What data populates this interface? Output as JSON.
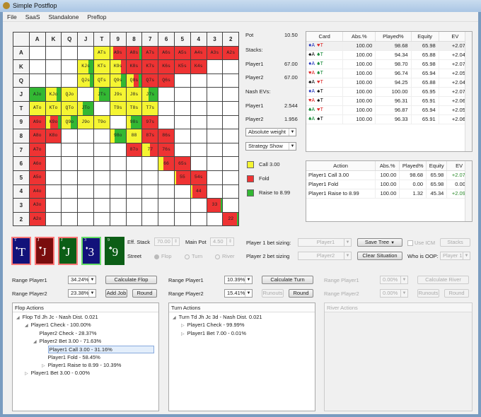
{
  "window": {
    "title": "Simple Postflop"
  },
  "menu": [
    "File",
    "SaaS",
    "Standalone",
    "Preflop"
  ],
  "colors": {
    "call": "#f5f532",
    "fold": "#ee3333",
    "raise": "#33b833"
  },
  "grid": {
    "headers": [
      "A",
      "K",
      "Q",
      "J",
      "T",
      "9",
      "8",
      "7",
      "6",
      "5",
      "4",
      "3",
      "2"
    ],
    "cells": [
      [
        "",
        "",
        "",
        "",
        "ATs|100,0,0",
        "A9s|20,80,0",
        "A8s|0,85,15",
        "A7s|0,100,0",
        "A6s|0,100,0",
        "A5s|0,100,0",
        "A4s|0,100,0",
        "A3s|0,100,0",
        "A2s|0,100,0"
      ],
      [
        "",
        "",
        "",
        "KJs|70,0,30",
        "KTs|100,0,0",
        "K9s|70,30,0",
        "K8s|0,100,0",
        "K7s|0,100,0",
        "K6s|0,100,0",
        "K5s|0,100,0",
        "K4s|0,100,0",
        "",
        ""
      ],
      [
        "",
        "",
        "",
        "QJs|75,0,25",
        "QTs|100,0,0",
        "Q9s|70,0,30",
        "Q8s|50,30,20",
        "Q7s|0,100,0",
        "Q6s|0,100,0",
        "",
        "",
        "",
        ""
      ],
      [
        "AJo|0,0,100",
        "KJo|70,0,30",
        "QJo|100,0,0",
        "",
        "JTs|30,0,70",
        "J9s|100,0,0",
        "J8s|100,0,0",
        "J7s|40,0,60",
        "",
        "",
        "",
        "",
        ""
      ],
      [
        "ATo|100,0,0",
        "KTo|100,0,0",
        "QTo|100,0,0",
        "JTo|30,0,70",
        "",
        "T9s|100,0,0",
        "T8s|100,0,0",
        "T7s|100,0,0",
        "",
        "",
        "",
        "",
        ""
      ],
      [
        "A9o|0,100,0",
        "K9o|30,50,20",
        "Q9o|60,0,40",
        "J9o|100,0,0",
        "T9o|100,0,0",
        "",
        "98s|30,0,70",
        "97s|0,100,0",
        "",
        "",
        "",
        "",
        ""
      ],
      [
        "A8o|0,100,0",
        "K8o|0,100,0",
        "",
        "",
        "",
        "98o|30,0,70",
        "88|100,0,0",
        "87s|0,100,0",
        "86s|0,100,0",
        "",
        "",
        "",
        ""
      ],
      [
        "A7o|0,100,0",
        "",
        "",
        "",
        "",
        "",
        "87o|0,100,0",
        "77|50,50,0",
        "76s|0,100,0",
        "",
        "",
        "",
        ""
      ],
      [
        "A6o|0,100,0",
        "",
        "",
        "",
        "",
        "",
        "",
        "",
        "66|30,70,0",
        "65s|0,100,0",
        "",
        "",
        ""
      ],
      [
        "A5o|0,100,0",
        "",
        "",
        "",
        "",
        "",
        "",
        "",
        "",
        "55|10,90,0",
        "54s|0,100,0",
        "",
        ""
      ],
      [
        "A4o|0,100,0",
        "",
        "",
        "",
        "",
        "",
        "",
        "",
        "",
        "",
        "44|10,90,0",
        "",
        ""
      ],
      [
        "A3o|0,100,0",
        "",
        "",
        "",
        "",
        "",
        "",
        "",
        "",
        "",
        "",
        "33|0,90,10",
        ""
      ],
      [
        "A2o|0,100,0",
        "",
        "",
        "",
        "",
        "",
        "",
        "",
        "",
        "",
        "",
        "",
        "22|0,90,10"
      ]
    ]
  },
  "info": {
    "pot_label": "Pot",
    "pot": "10.50",
    "stacks_label": "Stacks:",
    "p1_label": "Player1",
    "p1_stack": "67.00",
    "p2_label": "Player2",
    "p2_stack": "67.00",
    "nash_label": "Nash EVs:",
    "p1_ev": "2.544",
    "p2_ev": "1.956",
    "weight_select": "Absolute weight",
    "strategy_select": "Strategy Show"
  },
  "legend": [
    {
      "label": "Call 3.00",
      "color": "#f5f532"
    },
    {
      "label": "Fold",
      "color": "#ee3333"
    },
    {
      "label": "Raise to 8.99",
      "color": "#33b833"
    }
  ],
  "card_table": {
    "headers": [
      "Card",
      "Abs.%",
      "Played%",
      "Equity",
      "EV"
    ],
    "rows": [
      [
        [
          "♦",
          "#2233bb"
        ],
        [
          "♥",
          "#dd2222"
        ],
        "100.00",
        "98.68",
        "65.98",
        "+2.077"
      ],
      [
        [
          "♠",
          "#111111"
        ],
        [
          "♣",
          "#118833"
        ],
        "100.00",
        "94.34",
        "65.88",
        "+2.041"
      ],
      [
        [
          "♦",
          "#2233bb"
        ],
        [
          "♣",
          "#118833"
        ],
        "100.00",
        "98.70",
        "65.98",
        "+2.077"
      ],
      [
        [
          "♥",
          "#dd2222"
        ],
        [
          "♣",
          "#118833"
        ],
        "100.00",
        "96.74",
        "65.94",
        "+2.059"
      ],
      [
        [
          "♠",
          "#111111"
        ],
        [
          "♥",
          "#dd2222"
        ],
        "100.00",
        "94.25",
        "65.88",
        "+2.041"
      ],
      [
        [
          "♦",
          "#2233bb"
        ],
        [
          "♠",
          "#111111"
        ],
        "100.00",
        "100.00",
        "65.95",
        "+2.079"
      ],
      [
        [
          "♥",
          "#dd2222"
        ],
        [
          "♠",
          "#111111"
        ],
        "100.00",
        "96.31",
        "65.91",
        "+2.060"
      ],
      [
        [
          "♣",
          "#118833"
        ],
        [
          "♥",
          "#dd2222"
        ],
        "100.00",
        "96.87",
        "65.94",
        "+2.059"
      ],
      [
        [
          "♣",
          "#118833"
        ],
        [
          "♠",
          "#111111"
        ],
        "100.00",
        "96.33",
        "65.91",
        "+2.060"
      ]
    ]
  },
  "action_table": {
    "headers": [
      "Action",
      "Abs.%",
      "Played%",
      "Equity",
      "EV"
    ],
    "rows": [
      [
        "Player1 Call 3.00",
        "100.00",
        "98.68",
        "65.98",
        "+2.077"
      ],
      [
        "Player1 Fold",
        "100.00",
        "0.00",
        "65.98",
        "0.000"
      ],
      [
        "Player1 Raise to 8.99",
        "100.00",
        "1.32",
        "45.34",
        "+2.090"
      ]
    ]
  },
  "board": [
    {
      "rank": "T",
      "suit": "♦",
      "bg": "#12127a",
      "border": "#ff7777"
    },
    {
      "rank": "J",
      "suit": "♥",
      "bg": "#7a0d0d",
      "border": "#ff7777"
    },
    {
      "rank": "J",
      "suit": "♣",
      "bg": "#0c5e16",
      "border": "#ff7777"
    },
    {
      "rank": "3",
      "suit": "♦",
      "bg": "#12127a",
      "border": "#66dd66"
    },
    {
      "rank": "9",
      "suit": "♣",
      "bg": "#0c5e16",
      "border": "#0c5e16"
    }
  ],
  "settings": {
    "eff_stack_label": "Eff. Stack",
    "eff_stack": "70.00",
    "main_pot_label": "Main Pot",
    "main_pot": "4.50",
    "street_label": "Street",
    "streets": [
      "Flop",
      "Turn",
      "River"
    ],
    "p1_sizing_label": "Player 1 bet sizing:",
    "p1_sizing": "Player1",
    "p2_sizing_label": "Player 2 bet sizing",
    "p2_sizing": "Player2",
    "save_tree": "Save Tree",
    "clear": "Clear Situation",
    "use_icm": "Use ICM",
    "stacks": "Stacks",
    "oop_label": "Who is OOP:",
    "oop": "Player 1"
  },
  "ranges": {
    "flop": {
      "p1_label": "Range Player1",
      "p1": "34.24%",
      "p2_label": "Range Player2",
      "p2": "23.38%",
      "calc": "Calculate Flop",
      "add_job": "Add Job",
      "round": "Round"
    },
    "turn": {
      "p1_label": "Range Player1",
      "p1": "10.39%",
      "p2_label": "Range Player2",
      "p2": "15.41%",
      "calc": "Calculate Turn",
      "runouts": "Runouts",
      "round": "Round"
    },
    "river": {
      "p1_label": "Range Player1",
      "p1": "0.00%",
      "p2_label": "Range Player2",
      "p2": "0.00%",
      "calc": "Calculate River",
      "runouts": "Runouts",
      "round": "Round"
    }
  },
  "flop_actions": {
    "title": "Flop Actions",
    "nodes": [
      {
        "text": "Flop Td Jh Jc - Nash Dist. 0.021",
        "toggle": "◢",
        "level": 0
      },
      {
        "text": "Player1 Check - 100.00%",
        "toggle": "◢",
        "level": 1
      },
      {
        "text": "Player2 Check - 28.37%",
        "toggle": "",
        "level": 2
      },
      {
        "text": "Player2 Bet 3.00 - 71.63%",
        "toggle": "◢",
        "level": 2
      },
      {
        "text": "Player1 Call 3.00 - 31.16%",
        "toggle": "",
        "level": 3,
        "selected": true
      },
      {
        "text": "Player1 Fold - 58.45%",
        "toggle": "",
        "level": 3
      },
      {
        "text": "Player1 Raise to 8.99 - 10.39%",
        "toggle": "▷",
        "level": 3
      },
      {
        "text": "Player1 Bet 3.00 - 0.00%",
        "toggle": "▷",
        "level": 1
      }
    ]
  },
  "turn_actions": {
    "title": "Turn Actions",
    "nodes": [
      {
        "text": "Turn Td Jh Jc 3d - Nash Dist. 0.021",
        "toggle": "◢",
        "level": 0
      },
      {
        "text": "Player1 Check - 99.99%",
        "toggle": "▷",
        "level": 1
      },
      {
        "text": "Player1 Bet 7.00 - 0.01%",
        "toggle": "▷",
        "level": 1
      }
    ]
  },
  "river_actions": {
    "title": "River Actions"
  }
}
